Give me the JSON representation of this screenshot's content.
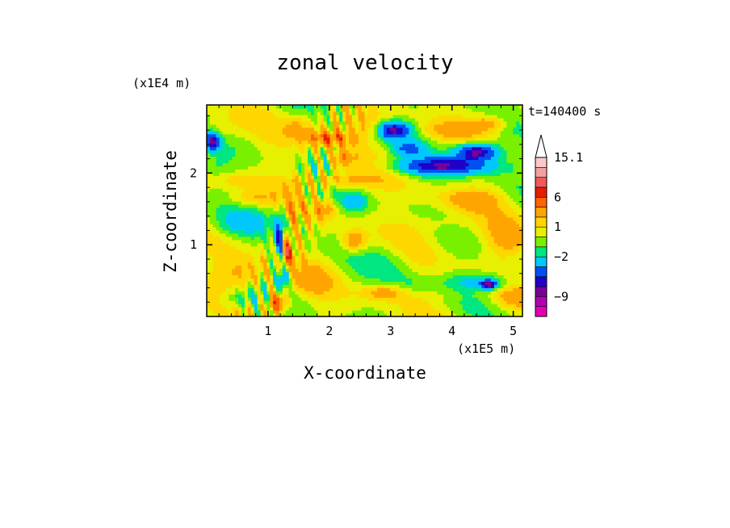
{
  "chart_data": {
    "type": "heatmap",
    "title": "zonal velocity",
    "xlabel": "X-coordinate",
    "ylabel": "Z-coordinate",
    "x_scale_label": "(x1E5 m)",
    "y_scale_label": "(x1E4 m)",
    "time_label": "t=140400 s",
    "xlim": [
      0,
      5.15
    ],
    "ylim": [
      0,
      2.95
    ],
    "x_ticks": [
      1,
      2,
      3,
      4,
      5
    ],
    "y_ticks": [
      1,
      2
    ],
    "x_tick_labels": [
      "1",
      "2",
      "3",
      "4",
      "5"
    ],
    "y_tick_labels": [
      "1",
      "2"
    ],
    "colorbar": {
      "levels": [
        -12,
        -10.5,
        -9,
        -7.5,
        -6,
        -4,
        -2,
        -1,
        0,
        1,
        2,
        4,
        6,
        8,
        10,
        13.5,
        15.1
      ],
      "colors": [
        "#e600b4",
        "#b400b4",
        "#7a0096",
        "#1e00c8",
        "#0050f0",
        "#00c8ff",
        "#00e680",
        "#78f000",
        "#e6f000",
        "#ffd700",
        "#ffa500",
        "#ff6400",
        "#e61e00",
        "#f05a5a",
        "#f5a0a0",
        "#ffc8c8"
      ],
      "extend_max_color": "#ffffff",
      "tick_values": [
        15.1,
        6,
        1,
        -2,
        -9
      ],
      "tick_labels": [
        "15.1",
        "6",
        "1",
        "−2",
        "−9"
      ]
    },
    "grid": false,
    "colorbar_placement": "right"
  }
}
